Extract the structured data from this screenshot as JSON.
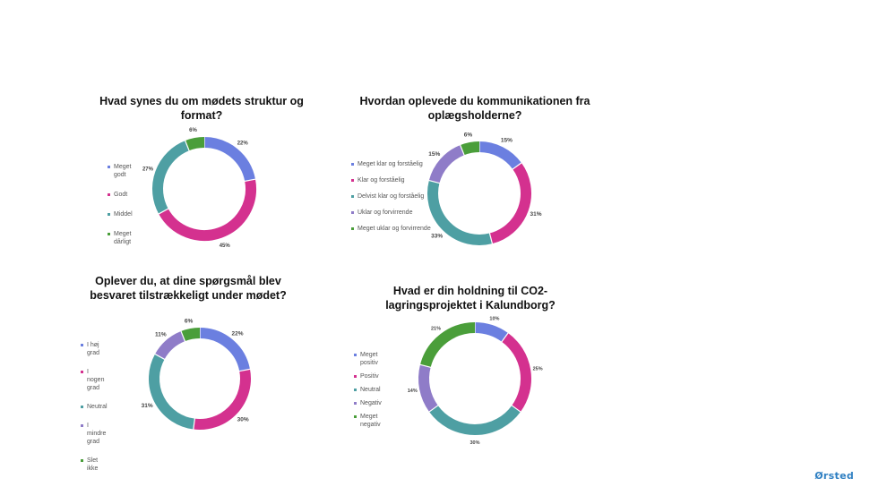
{
  "logo": {
    "text": "Ørsted",
    "color": "#2e7fc2"
  },
  "chart_data": [
    {
      "type": "pie",
      "title": "Hvad synes du om mødets struktur og format?",
      "categories": [
        "Meget godt",
        "Godt",
        "Middel",
        "Meget dårligt"
      ],
      "values": [
        22,
        45,
        27,
        6
      ],
      "value_labels": [
        "22%",
        "45%",
        "27%",
        "6%"
      ],
      "colors": [
        "#6b7fe0",
        "#d4318f",
        "#4e9fa3",
        "#4a9e3a"
      ],
      "legend": "left",
      "donut": true
    },
    {
      "type": "pie",
      "title": "Hvordan oplevede du kommunikationen fra oplægsholderne?",
      "categories": [
        "Meget klar og forståelig",
        "Klar og forståelig",
        "Delvist klar og forståelig",
        "Uklar og forvirrende",
        "Meget uklar og forvirrende"
      ],
      "values": [
        15,
        31,
        33,
        15,
        6
      ],
      "value_labels": [
        "15%",
        "31%",
        "33%",
        "15%",
        "6%"
      ],
      "colors": [
        "#6b7fe0",
        "#d4318f",
        "#4e9fa3",
        "#8f7cc8",
        "#4a9e3a"
      ],
      "legend": "left",
      "donut": true
    },
    {
      "type": "pie",
      "title": "Oplever du, at dine spørgsmål blev besvaret tilstrækkeligt under mødet?",
      "categories": [
        "I høj grad",
        "I nogen grad",
        "Neutral",
        "I mindre grad",
        "Slet ikke"
      ],
      "values": [
        22,
        30,
        31,
        11,
        6
      ],
      "value_labels": [
        "22%",
        "30%",
        "31%",
        "11%",
        "6%"
      ],
      "colors": [
        "#6b7fe0",
        "#d4318f",
        "#4e9fa3",
        "#8f7cc8",
        "#4a9e3a"
      ],
      "legend": "left",
      "donut": true
    },
    {
      "type": "pie",
      "title": "Hvad er din holdning til CO2-lagringsprojektet i Kalundborg?",
      "categories": [
        "Meget positiv",
        "Positiv",
        "Neutral",
        "Negativ",
        "Meget negativ"
      ],
      "values": [
        10,
        25,
        30,
        14,
        21
      ],
      "value_labels": [
        "10%",
        "25%",
        "30%",
        "14%",
        "21%"
      ],
      "colors": [
        "#6b7fe0",
        "#d4318f",
        "#4e9fa3",
        "#8f7cc8",
        "#4a9e3a"
      ],
      "legend": "left",
      "donut": true
    }
  ]
}
